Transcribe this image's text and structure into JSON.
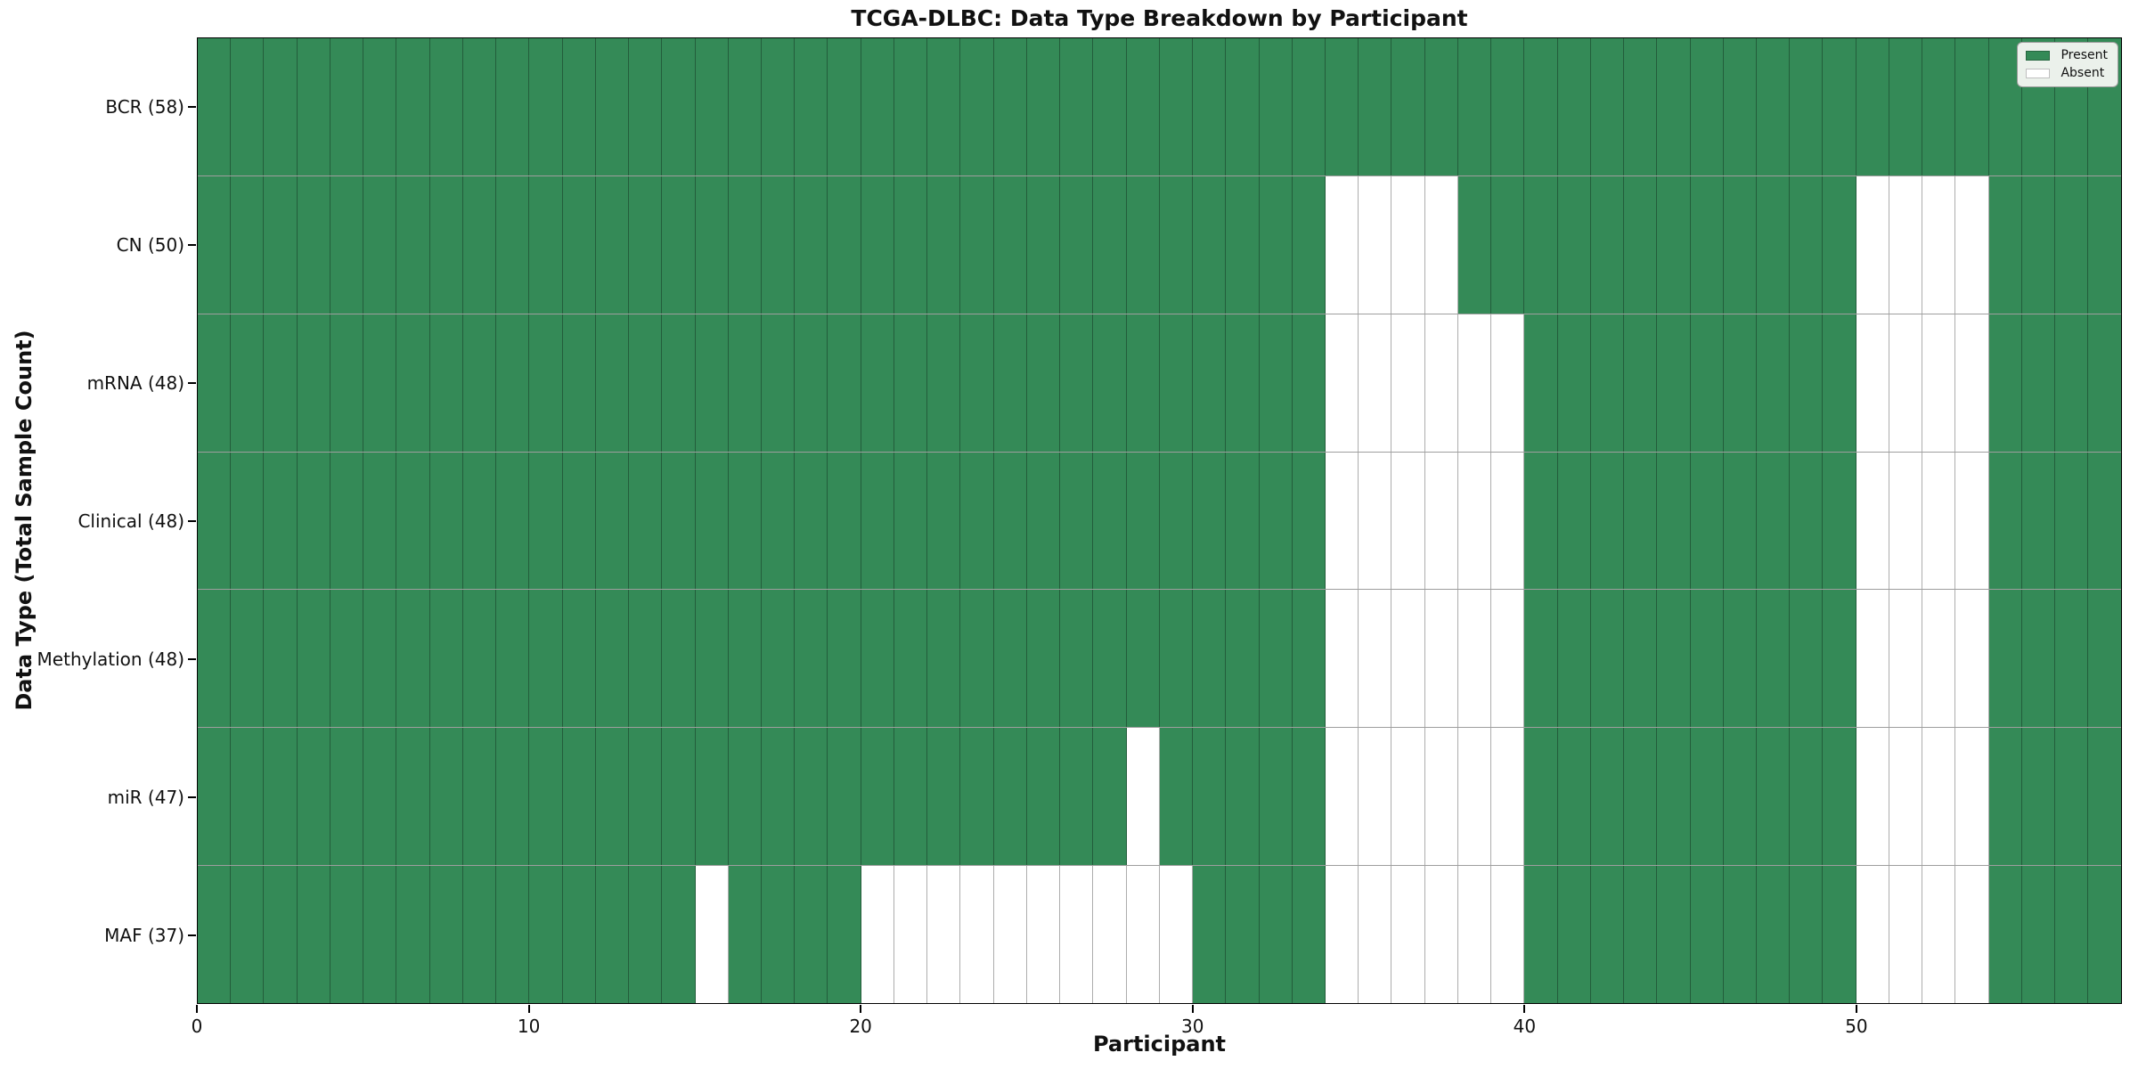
{
  "chart_data": {
    "type": "heatmap",
    "title": "TCGA-DLBC: Data Type Breakdown by Participant",
    "xlabel": "Participant",
    "ylabel": "Data Type (Total Sample Count)",
    "n_participants": 58,
    "x_range": [
      0,
      58
    ],
    "x_ticks": [
      0,
      10,
      20,
      30,
      40,
      50
    ],
    "grid": true,
    "colors": {
      "present": "#348a57",
      "absent": "#ffffff"
    },
    "rows": [
      {
        "label": "BCR (58)",
        "data_type": "BCR",
        "present_count": 58,
        "absent_participants": []
      },
      {
        "label": "CN (50)",
        "data_type": "CN",
        "present_count": 50,
        "absent_participants": [
          34,
          35,
          36,
          37,
          50,
          51,
          52,
          53
        ]
      },
      {
        "label": "mRNA (48)",
        "data_type": "mRNA",
        "present_count": 48,
        "absent_participants": [
          34,
          35,
          36,
          37,
          38,
          39,
          50,
          51,
          52,
          53
        ]
      },
      {
        "label": "Clinical (48)",
        "data_type": "Clinical",
        "present_count": 48,
        "absent_participants": [
          34,
          35,
          36,
          37,
          38,
          39,
          50,
          51,
          52,
          53
        ]
      },
      {
        "label": "Methylation (48)",
        "data_type": "Methylation",
        "present_count": 48,
        "absent_participants": [
          34,
          35,
          36,
          37,
          38,
          39,
          50,
          51,
          52,
          53
        ]
      },
      {
        "label": "miR (47)",
        "data_type": "miR",
        "present_count": 47,
        "absent_participants": [
          28,
          34,
          35,
          36,
          37,
          38,
          39,
          50,
          51,
          52,
          53
        ]
      },
      {
        "label": "MAF (37)",
        "data_type": "MAF",
        "present_count": 37,
        "absent_participants": [
          15,
          20,
          21,
          22,
          23,
          24,
          25,
          26,
          27,
          28,
          29,
          34,
          35,
          36,
          37,
          38,
          39,
          50,
          51,
          52,
          53
        ]
      }
    ],
    "legend": {
      "position": "upper right",
      "entries": [
        {
          "label": "Present",
          "color": "#348a57"
        },
        {
          "label": "Absent",
          "color": "#ffffff"
        }
      ]
    }
  }
}
